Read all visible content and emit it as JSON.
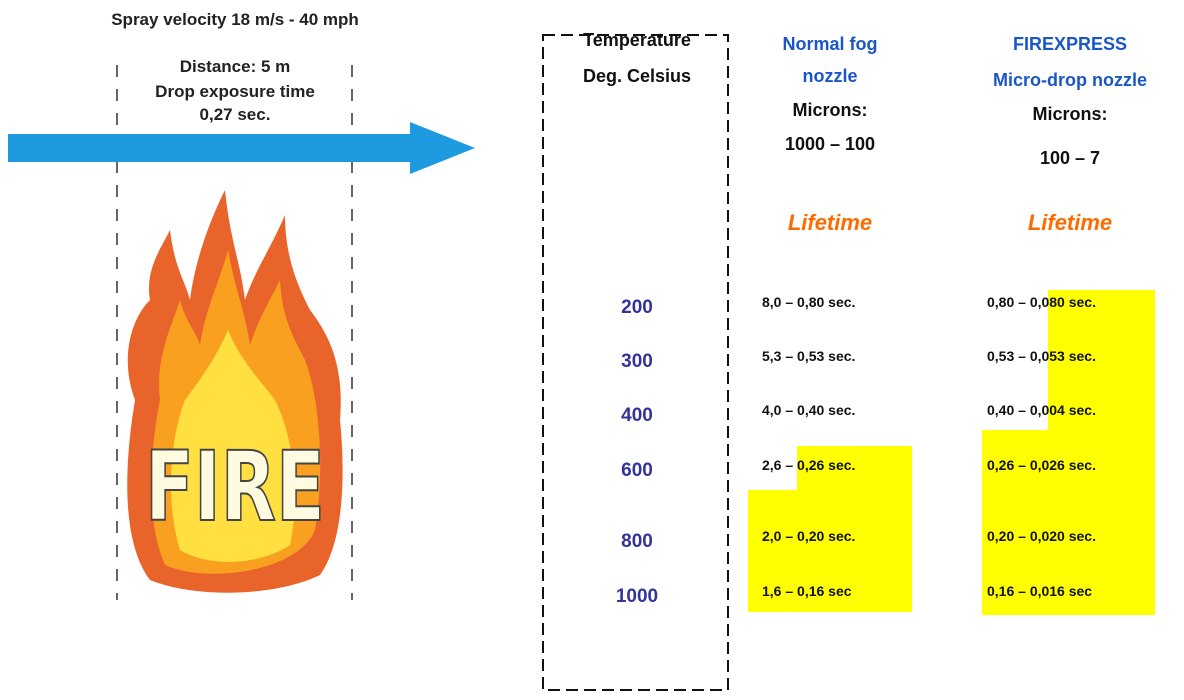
{
  "header": {
    "spray": "Spray velocity 18 m/s - 40 mph",
    "distance": "Distance: 5 m",
    "exposure": "Drop exposure time",
    "exposure_time": "0,27 sec.",
    "fire": "FIRE"
  },
  "table": {
    "temperature_header": [
      "Temperature",
      "Deg. Celsius"
    ],
    "normal_header": [
      "Normal fog",
      "nozzle",
      "Microns:",
      "1000 – 100",
      "Lifetime"
    ],
    "micro_header": [
      "FIREXPRESS",
      "Micro-drop nozzle",
      "Microns:",
      "100 – 7",
      "Lifetime"
    ],
    "rows": [
      [
        "200",
        "8,0 – 0,80 sec.",
        "0,80 – 0,080 sec."
      ],
      [
        "300",
        "5,3 – 0,53 sec.",
        "0,53 – 0,053 sec."
      ],
      [
        "400",
        "4,0 – 0,40 sec.",
        "0,40 – 0,004 sec."
      ],
      [
        "600",
        "2,6 – 0,26 sec.",
        "0,26 – 0,026 sec."
      ],
      [
        "800",
        "2,0 – 0,20 sec.",
        "0,20 – 0,020 sec."
      ],
      [
        "1000",
        "1,6 – 0,16 sec",
        "0,16 – 0,016 sec"
      ]
    ]
  }
}
